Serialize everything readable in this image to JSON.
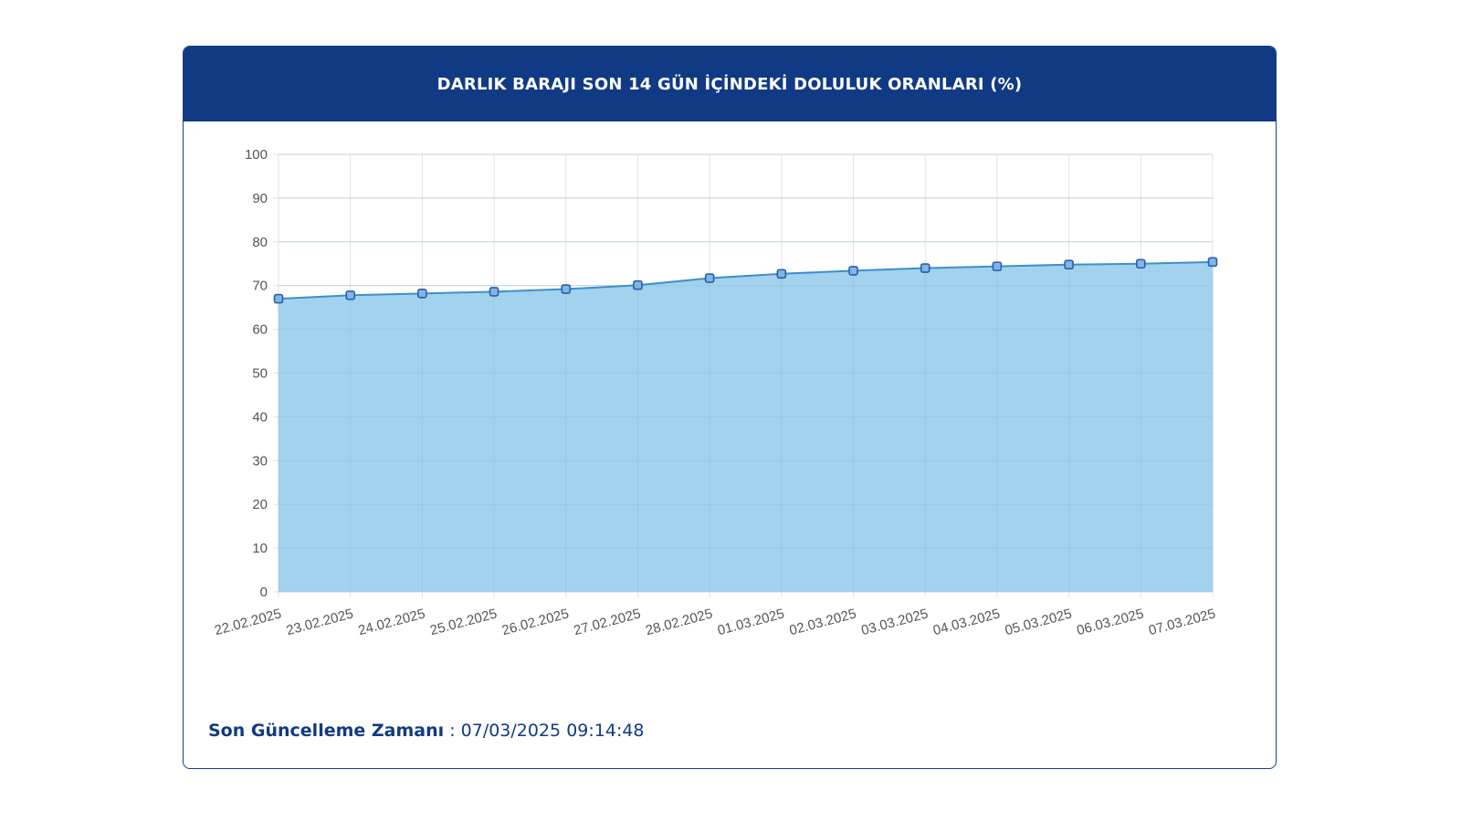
{
  "card": {
    "title": "DARLIK BARAJI SON 14 GÜN İÇİNDEKİ DOLULUK ORANLARI (%)"
  },
  "footer": {
    "label": "Son Güncelleme Zamanı",
    "separator": " : ",
    "value": "07/03/2025 09:14:48"
  },
  "colors": {
    "header_bg": "#113a84",
    "area_fill": "#9dd0ec",
    "line": "#3d8fcc",
    "marker_stroke": "#2a5ea8",
    "marker_fill": "#7fb6e6",
    "grid": "#e3e3e3"
  },
  "chart_data": {
    "type": "area",
    "categories": [
      "22.02.2025",
      "23.02.2025",
      "24.02.2025",
      "25.02.2025",
      "26.02.2025",
      "27.02.2025",
      "28.02.2025",
      "01.03.2025",
      "02.03.2025",
      "03.03.2025",
      "04.03.2025",
      "05.03.2025",
      "06.03.2025",
      "07.03.2025"
    ],
    "values": [
      67.0,
      67.8,
      68.2,
      68.6,
      69.2,
      70.1,
      71.7,
      72.7,
      73.4,
      74.0,
      74.4,
      74.8,
      75.0,
      75.4
    ],
    "ylim": [
      0,
      100
    ],
    "yticks": [
      "0",
      "10",
      "20",
      "30",
      "40",
      "50",
      "60",
      "70",
      "80",
      "90",
      "100"
    ],
    "grid": true,
    "markers": "square"
  }
}
